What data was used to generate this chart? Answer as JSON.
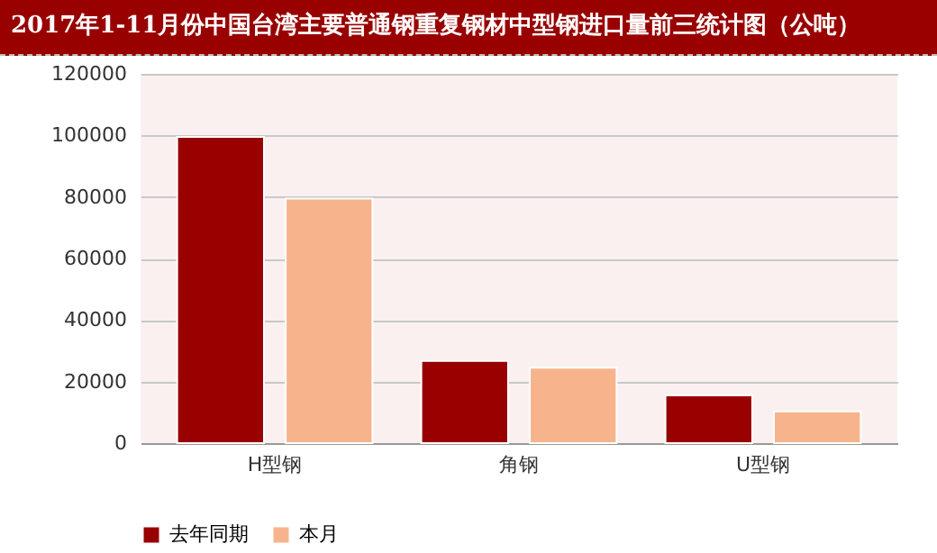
{
  "chart_data": {
    "type": "bar",
    "title": "2017年1-11月份中国台湾主要普通钢重复钢材中型钢进口量前三统计图（公吨）",
    "categories": [
      "H型钢",
      "角钢",
      "U型钢"
    ],
    "series": [
      {
        "name": "去年同期",
        "color": "#990000",
        "values": [
          99500,
          26700,
          15500
        ]
      },
      {
        "name": "本月",
        "color": "#f7b48c",
        "values": [
          79500,
          24500,
          10300
        ]
      }
    ],
    "ylim": [
      0,
      120000
    ],
    "yticks": [
      0,
      20000,
      40000,
      60000,
      80000,
      100000,
      120000
    ],
    "grid": "y",
    "legend": "bottom"
  }
}
